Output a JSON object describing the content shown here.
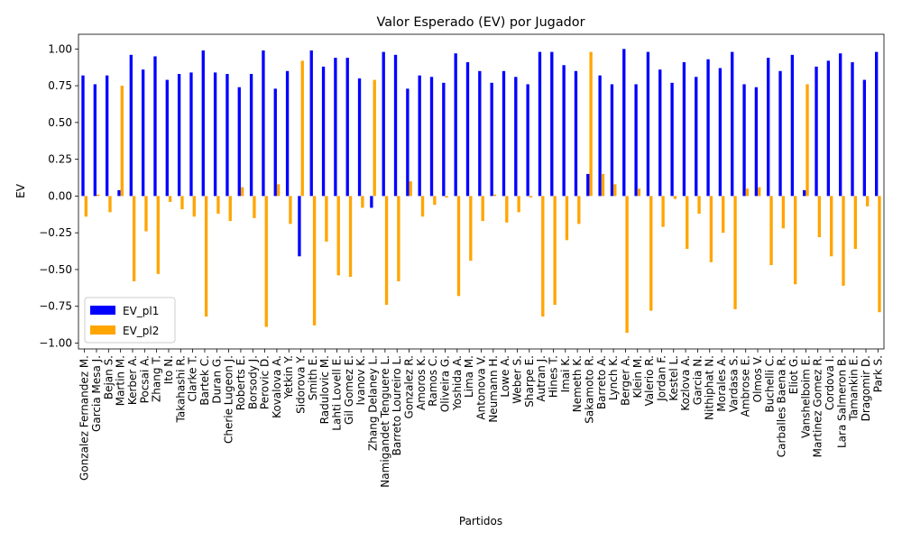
{
  "chart_data": {
    "type": "bar",
    "title": "Valor Esperado (EV) por Jugador",
    "xlabel": "Partidos",
    "ylabel": "EV",
    "categories": [
      "Gonzalez Fernandez M.",
      "Garcia Mesa J.",
      "Bejan S.",
      "Martin M.",
      "Kerber A.",
      "Pocsai A.",
      "Zhang T.",
      "Ito N.",
      "Takahashi R.",
      "Clarke T.",
      "Bartek C.",
      "Duran G.",
      "Cherie Lugeon J.",
      "Roberts E.",
      "Borsody J.",
      "Perovic D.",
      "Kovalova A.",
      "Yetkin Y.",
      "Sidorova Y.",
      "Smith E.",
      "Radulovic M.",
      "Lahti Lovell E.",
      "Gil Gomez E.",
      "Ivanov K.",
      "Zhang Delaney L.",
      "Namigandet Tenguere L.",
      "Barreto Loureiro L.",
      "Gonzalez R.",
      "Amoros K.",
      "Ramos C.",
      "Oliveira G.",
      "Yoshida A.",
      "Lima M.",
      "Antonova V.",
      "Neumann H.",
      "Lowe A.",
      "Weber S.",
      "Sharpe E.",
      "Autran J.",
      "Hines T.",
      "Imai K.",
      "Nemeth K.",
      "Sakamoto R.",
      "Barreto A.",
      "Lynch K.",
      "Berger A.",
      "Klein M.",
      "Valerio R.",
      "Jordan F.",
      "Kestel L.",
      "Kozlova A.",
      "Garcia N.",
      "Nithiphat N.",
      "Morales A.",
      "Vardasa S.",
      "Ambrose E.",
      "Olmos V.",
      "Buchelli C.",
      "Carballes Baena R.",
      "Eliot G.",
      "Vanshelboim E.",
      "Martinez Gomez R.",
      "Cordova I.",
      "Lara Salmeron B.",
      "Tamankin E.",
      "Dragomir D.",
      "Park S."
    ],
    "series": [
      {
        "name": "EV_pl1",
        "color": "#0000ff",
        "values": [
          0.82,
          0.76,
          0.82,
          0.04,
          0.96,
          0.86,
          0.95,
          0.79,
          0.83,
          0.84,
          0.99,
          0.84,
          0.83,
          0.74,
          0.83,
          0.99,
          0.73,
          0.85,
          -0.41,
          0.99,
          0.88,
          0.94,
          0.94,
          0.8,
          -0.08,
          0.98,
          0.96,
          0.73,
          0.82,
          0.81,
          0.77,
          0.97,
          0.91,
          0.85,
          0.77,
          0.85,
          0.81,
          0.76,
          0.98,
          0.98,
          0.89,
          0.85,
          0.15,
          0.82,
          0.76,
          1.0,
          0.76,
          0.98,
          0.86,
          0.77,
          0.91,
          0.81,
          0.93,
          0.87,
          0.98,
          0.76,
          0.74,
          0.94,
          0.85,
          0.96,
          0.04,
          0.88,
          0.92,
          0.97,
          0.91,
          0.79,
          0.98
        ]
      },
      {
        "name": "EV_pl2",
        "color": "#ffa500",
        "values": [
          -0.14,
          0.01,
          -0.11,
          0.75,
          -0.58,
          -0.24,
          -0.53,
          -0.04,
          -0.09,
          -0.14,
          -0.82,
          -0.12,
          -0.17,
          0.06,
          -0.15,
          -0.89,
          0.08,
          -0.19,
          0.92,
          -0.88,
          -0.31,
          -0.54,
          -0.55,
          -0.08,
          0.79,
          -0.74,
          -0.58,
          0.1,
          -0.14,
          -0.06,
          -0.01,
          -0.68,
          -0.44,
          -0.17,
          0.01,
          -0.18,
          -0.11,
          -0.01,
          -0.82,
          -0.74,
          -0.3,
          -0.19,
          0.98,
          0.15,
          0.08,
          -0.93,
          0.05,
          -0.78,
          -0.21,
          -0.02,
          -0.36,
          -0.12,
          -0.45,
          -0.25,
          -0.77,
          0.05,
          0.06,
          -0.47,
          -0.22,
          -0.6,
          0.76,
          -0.28,
          -0.41,
          -0.61,
          -0.36,
          -0.07,
          -0.79
        ]
      }
    ],
    "ylim": [
      -1.04,
      1.1
    ],
    "yticks": [
      {
        "value": -1,
        "label": "−1.00"
      },
      {
        "value": -0.75,
        "label": "−0.75"
      },
      {
        "value": -0.5,
        "label": "−0.50"
      },
      {
        "value": -0.25,
        "label": "−0.25"
      },
      {
        "value": 0,
        "label": "0.00"
      },
      {
        "value": 0.25,
        "label": "0.25"
      },
      {
        "value": 0.5,
        "label": "0.50"
      },
      {
        "value": 0.75,
        "label": "0.75"
      },
      {
        "value": 1,
        "label": "1.00"
      }
    ],
    "legend": "lower left"
  }
}
